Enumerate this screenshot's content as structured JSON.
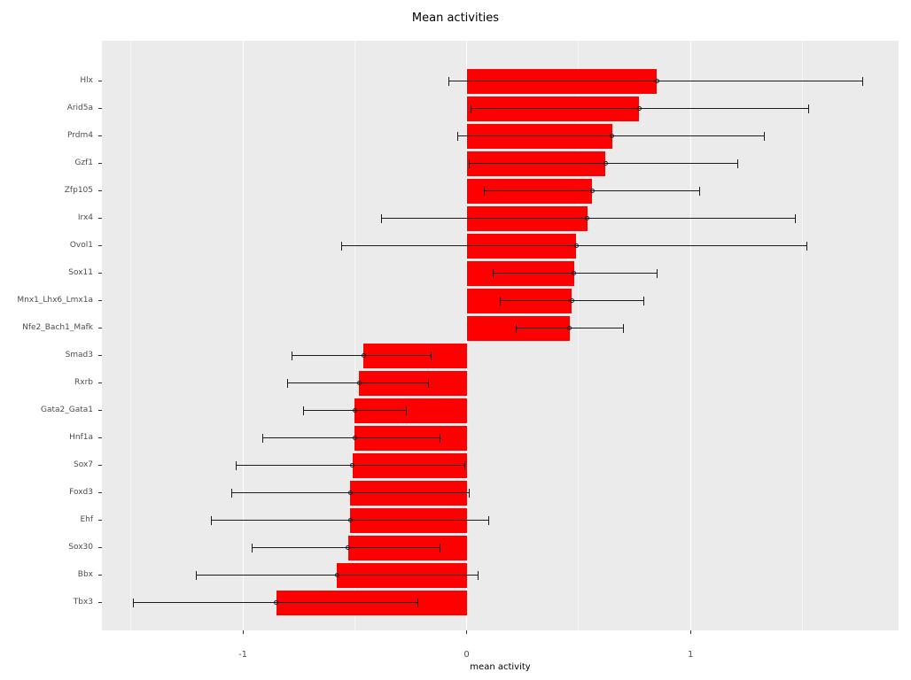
{
  "chart_data": {
    "type": "bar",
    "orientation": "horizontal",
    "title": "Mean activities",
    "xlabel": "mean activity",
    "ylabel": "",
    "xlim": [
      -1.63,
      1.93
    ],
    "x_major_ticks": [
      -1,
      0,
      1
    ],
    "x_major_tick_labels": [
      "-1",
      "0",
      "1"
    ],
    "x_minor_ticks": [
      -1.5,
      -0.5,
      0.5,
      1.5
    ],
    "grid": true,
    "legend": "none",
    "panel_bg": "#EBEBEB",
    "bar_color": "#FF0000",
    "errorbar_color": "#1a1a1a",
    "categories": [
      "Hlx",
      "Arid5a",
      "Prdm4",
      "Gzf1",
      "Zfp105",
      "Irx4",
      "Ovol1",
      "Sox11",
      "Mnx1_Lhx6_Lmx1a",
      "Nfe2_Bach1_Mafk",
      "Smad3",
      "Rxrb",
      "Gata2_Gata1",
      "Hnf1a",
      "Sox7",
      "Foxd3",
      "Ehf",
      "Sox30",
      "Bbx",
      "Tbx3"
    ],
    "values": [
      0.85,
      0.77,
      0.65,
      0.62,
      0.56,
      0.54,
      0.49,
      0.48,
      0.47,
      0.46,
      -0.46,
      -0.48,
      -0.5,
      -0.5,
      -0.51,
      -0.52,
      -0.52,
      -0.53,
      -0.58,
      -0.85
    ],
    "error_low": [
      -0.08,
      0.02,
      -0.04,
      0.01,
      0.08,
      -0.38,
      -0.56,
      0.12,
      0.15,
      0.22,
      -0.78,
      -0.8,
      -0.73,
      -0.91,
      -1.03,
      -1.05,
      -1.14,
      -0.96,
      -1.21,
      -1.49
    ],
    "error_high": [
      1.77,
      1.53,
      1.33,
      1.21,
      1.04,
      1.47,
      1.52,
      0.85,
      0.79,
      0.7,
      -0.16,
      -0.17,
      -0.27,
      -0.12,
      -0.01,
      0.01,
      0.1,
      -0.12,
      0.05,
      -0.22
    ]
  }
}
